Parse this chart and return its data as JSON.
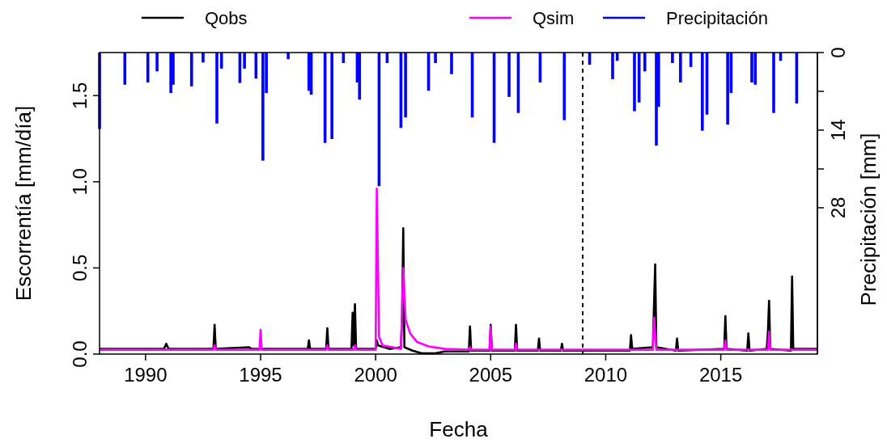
{
  "chart_data": {
    "type": "line",
    "xlabel": "Fecha",
    "ylabel": "Escorrentía [mm/día]",
    "y2label": "Precipitación [mm]",
    "legend": "top",
    "line_style": "solid",
    "grid": false,
    "xlim": [
      1988,
      2019.2
    ],
    "xticks": [
      1990,
      1995,
      2000,
      2005,
      2010,
      2015
    ],
    "ylim": [
      0,
      1.75
    ],
    "yticks": [
      {
        "value": 0,
        "label": "0.0"
      },
      {
        "value": 0.5,
        "label": "0.5"
      },
      {
        "value": 1,
        "label": "1.0"
      },
      {
        "value": 1.5,
        "label": "1.5"
      }
    ],
    "y2lim": [
      54.4,
      0
    ],
    "y2ticks": [
      0,
      {
        "value": 7,
        "label": null
      },
      14,
      {
        "value": 21,
        "label": null
      },
      28
    ],
    "ref_lines": [
      {
        "axis": "x",
        "value": 2009,
        "line_style": "dashed",
        "color": "#000000"
      }
    ],
    "series": [
      {
        "name": "Precipitación",
        "type": "bar",
        "axis": "y2",
        "color": "#0000ff",
        "x": [
          1988.0,
          1989.1,
          1990.1,
          1990.5,
          1991.1,
          1991.2,
          1992.0,
          1992.5,
          1993.1,
          1993.3,
          1994.1,
          1994.3,
          1994.8,
          1995.1,
          1995.25,
          1996.2,
          1997.1,
          1997.2,
          1997.8,
          1998.1,
          1998.6,
          1999.2,
          1999.3,
          2000.15,
          2000.5,
          2001.1,
          2001.3,
          2002.3,
          2002.6,
          2003.3,
          2004.2,
          2005.15,
          2005.8,
          2006.2,
          2007.15,
          2008.2,
          2009.3,
          2010.3,
          2010.5,
          2011.25,
          2011.45,
          2011.7,
          2012.2,
          2012.3,
          2012.9,
          2013.25,
          2013.7,
          2014.2,
          2014.4,
          2015.3,
          2015.45,
          2016.35,
          2016.5,
          2017.3,
          2017.6,
          2018.3
        ],
        "values": [
          13.8,
          5.8,
          5.4,
          3.4,
          7.3,
          5.8,
          6.1,
          1.8,
          12.8,
          2.9,
          5.5,
          2.9,
          4.7,
          19.5,
          7.3,
          1.2,
          6.9,
          7.6,
          16.3,
          15.6,
          1.9,
          5.4,
          8.5,
          24.1,
          1.9,
          13.6,
          11.7,
          6.9,
          1.9,
          3.9,
          11.7,
          16.3,
          8.0,
          10.9,
          5.4,
          12.2,
          2.2,
          4.8,
          1.5,
          10.6,
          9.0,
          3.4,
          16.8,
          9.8,
          1.9,
          5.4,
          2.6,
          14.1,
          11.2,
          13.0,
          7.3,
          5.4,
          5.8,
          10.9,
          1.5,
          9.2
        ]
      },
      {
        "name": "Qobs",
        "color": "#000000",
        "x": [
          1988.0,
          1989.0,
          1990.8,
          1990.9,
          1991.0,
          1992.95,
          1993.0,
          1993.05,
          1994.5,
          1994.6,
          1997.05,
          1997.1,
          1997.15,
          1997.85,
          1997.9,
          1997.95,
          1998.95,
          1999.0,
          1999.05,
          1999.1,
          1999.15,
          2000.0,
          2000.05,
          2000.1,
          2000.6,
          2001.1,
          2001.15,
          2001.2,
          2001.25,
          2001.6,
          2002.0,
          2002.6,
          2003.0,
          2004.05,
          2004.1,
          2004.15,
          2004.95,
          2005.0,
          2005.05,
          2006.05,
          2006.1,
          2006.15,
          2007.05,
          2007.1,
          2007.15,
          2008.05,
          2008.1,
          2008.15,
          2011.05,
          2011.1,
          2011.15,
          2012.05,
          2012.1,
          2012.15,
          2012.2,
          2013.05,
          2013.1,
          2013.15,
          2015.15,
          2015.2,
          2015.25,
          2016.15,
          2016.2,
          2016.25,
          2017.0,
          2017.05,
          2017.1,
          2017.15,
          2018.05,
          2018.1,
          2018.15,
          2019.2
        ],
        "values": [
          0.03,
          0.03,
          0.03,
          0.06,
          0.03,
          0.03,
          0.17,
          0.03,
          0.04,
          0.03,
          0.03,
          0.08,
          0.03,
          0.03,
          0.15,
          0.03,
          0.03,
          0.24,
          0.05,
          0.29,
          0.03,
          0.03,
          0.08,
          0.05,
          0.03,
          0.04,
          0.22,
          0.73,
          0.04,
          0.02,
          0.005,
          0.005,
          0.015,
          0.015,
          0.16,
          0.02,
          0.02,
          0.17,
          0.02,
          0.02,
          0.17,
          0.02,
          0.02,
          0.09,
          0.02,
          0.02,
          0.06,
          0.02,
          0.02,
          0.11,
          0.03,
          0.04,
          0.29,
          0.52,
          0.04,
          0.02,
          0.09,
          0.02,
          0.03,
          0.22,
          0.03,
          0.02,
          0.12,
          0.02,
          0.03,
          0.13,
          0.31,
          0.03,
          0.02,
          0.45,
          0.03,
          0.03
        ]
      },
      {
        "name": "Qsim",
        "color": "#ff00ff",
        "x": [
          1988.0,
          1992.95,
          1993.0,
          1993.05,
          1994.95,
          1995.0,
          1995.05,
          1997.85,
          1997.9,
          1997.95,
          1999.05,
          1999.1,
          1999.15,
          2000.0,
          2000.05,
          2000.15,
          2000.3,
          2001.1,
          2001.2,
          2001.3,
          2001.5,
          2001.8,
          2002.3,
          2003.0,
          2004.05,
          2004.1,
          2004.15,
          2004.95,
          2005.0,
          2005.05,
          2006.05,
          2006.1,
          2006.15,
          2012.05,
          2012.1,
          2012.2,
          2015.15,
          2015.2,
          2015.25,
          2017.05,
          2017.1,
          2017.15,
          2019.2
        ],
        "values": [
          0.025,
          0.025,
          0.05,
          0.025,
          0.025,
          0.14,
          0.025,
          0.025,
          0.05,
          0.025,
          0.025,
          0.05,
          0.025,
          0.025,
          0.96,
          0.1,
          0.05,
          0.03,
          0.5,
          0.2,
          0.12,
          0.07,
          0.045,
          0.03,
          0.025,
          0.04,
          0.025,
          0.025,
          0.16,
          0.025,
          0.025,
          0.06,
          0.025,
          0.025,
          0.21,
          0.025,
          0.025,
          0.08,
          0.025,
          0.025,
          0.13,
          0.025,
          0.025
        ]
      }
    ]
  }
}
